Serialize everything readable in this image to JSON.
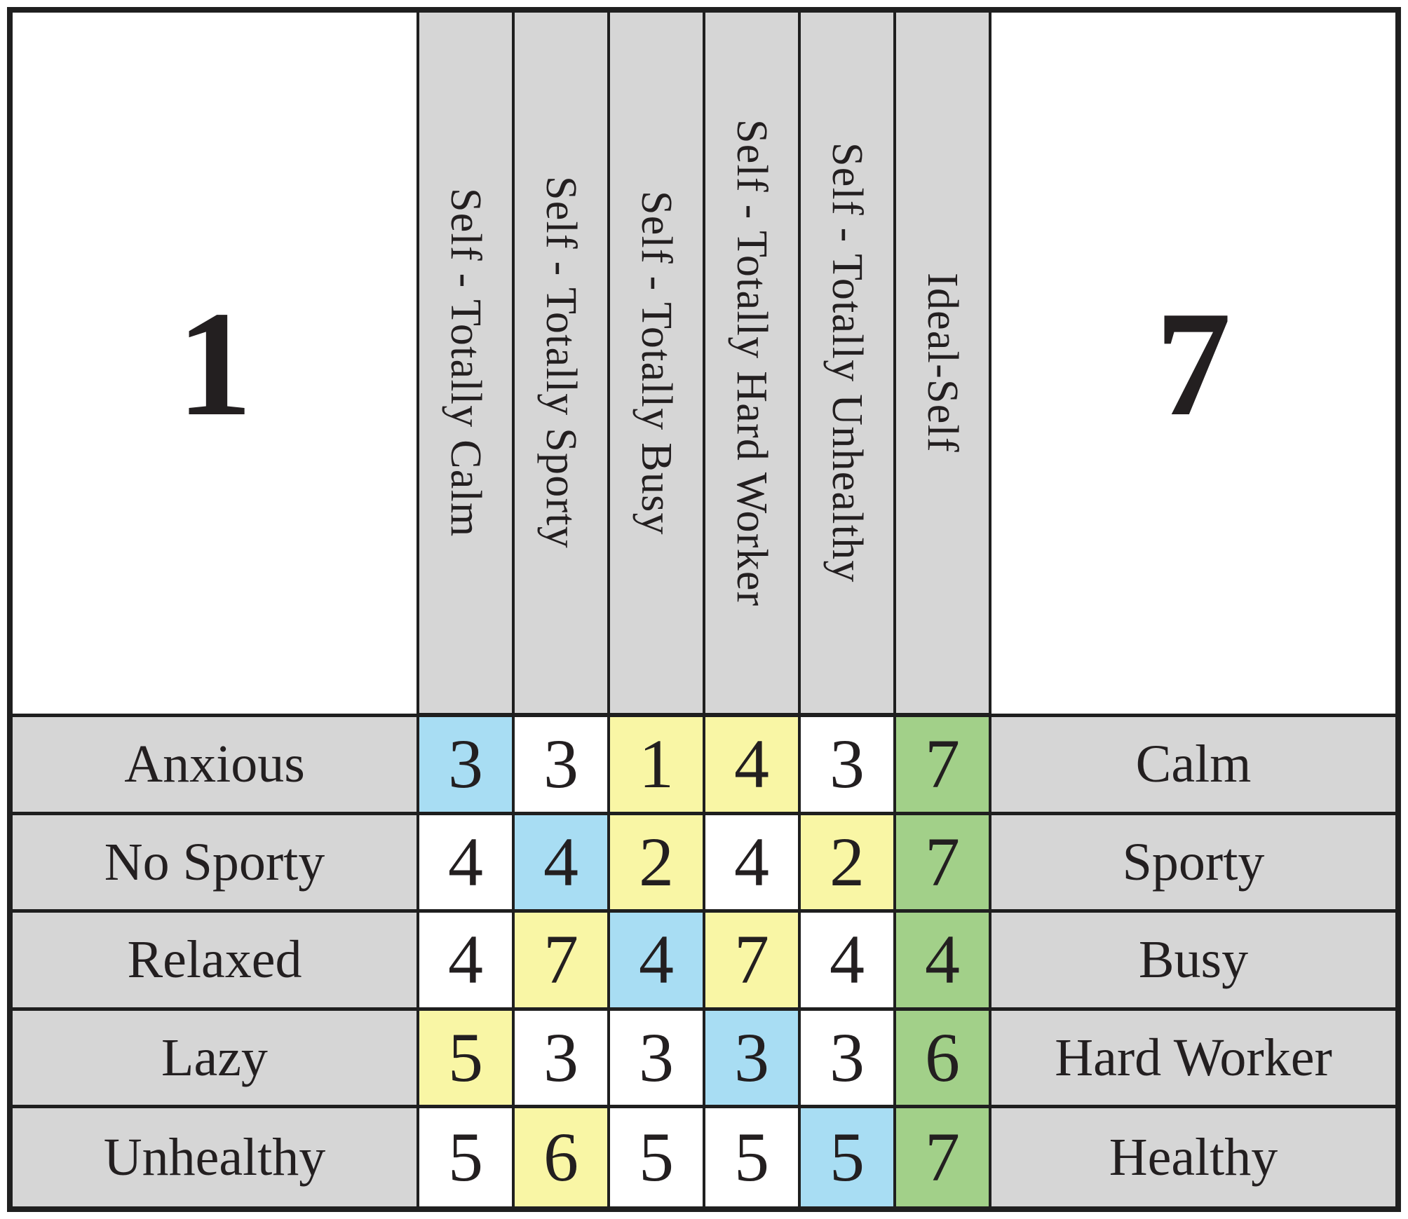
{
  "figure": {
    "left_scale": "1",
    "right_scale": "7",
    "column_headers": [
      "Self - Totally Calm",
      "Self - Totally Sporty",
      "Self - Totally Busy",
      "Self - Totally Hard Worker",
      "Self - Totally Unhealthy",
      "Ideal-Self"
    ],
    "rows": [
      {
        "left_pole": "Anxious",
        "right_pole": "Calm",
        "values": [
          "3",
          "3",
          "1",
          "4",
          "3",
          "7"
        ],
        "cell_colors": [
          "blue",
          "white",
          "yellow",
          "yellow",
          "white",
          "green"
        ]
      },
      {
        "left_pole": "No Sporty",
        "right_pole": "Sporty",
        "values": [
          "4",
          "4",
          "2",
          "4",
          "2",
          "7"
        ],
        "cell_colors": [
          "white",
          "blue",
          "yellow",
          "white",
          "yellow",
          "green"
        ]
      },
      {
        "left_pole": "Relaxed",
        "right_pole": "Busy",
        "values": [
          "4",
          "7",
          "4",
          "7",
          "4",
          "4"
        ],
        "cell_colors": [
          "white",
          "yellow",
          "blue",
          "yellow",
          "white",
          "green"
        ]
      },
      {
        "left_pole": "Lazy",
        "right_pole": "Hard Worker",
        "values": [
          "5",
          "3",
          "3",
          "3",
          "3",
          "6"
        ],
        "cell_colors": [
          "yellow",
          "white",
          "white",
          "blue",
          "white",
          "green"
        ]
      },
      {
        "left_pole": "Unhealthy",
        "right_pole": "Healthy",
        "values": [
          "5",
          "6",
          "5",
          "5",
          "5",
          "7"
        ],
        "cell_colors": [
          "white",
          "yellow",
          "white",
          "white",
          "blue",
          "green"
        ]
      }
    ],
    "colors": {
      "blue": "#a8ddf3",
      "yellow": "#f9f6a5",
      "green": "#a2d089",
      "white": "#ffffff",
      "header_gray": "#d6d6d6",
      "line": "#1f1f1f"
    }
  },
  "chart_data": {
    "type": "table",
    "scale_left_label": "1",
    "scale_right_label": "7",
    "columns": [
      "Self - Totally Calm",
      "Self - Totally Sporty",
      "Self - Totally Busy",
      "Self - Totally Hard Worker",
      "Self - Totally Unhealthy",
      "Ideal-Self"
    ],
    "rows": [
      {
        "construct_left": "Anxious",
        "construct_right": "Calm",
        "ratings": [
          3,
          3,
          1,
          4,
          3,
          7
        ]
      },
      {
        "construct_left": "No Sporty",
        "construct_right": "Sporty",
        "ratings": [
          4,
          4,
          2,
          4,
          2,
          7
        ]
      },
      {
        "construct_left": "Relaxed",
        "construct_right": "Busy",
        "ratings": [
          4,
          7,
          4,
          7,
          4,
          4
        ]
      },
      {
        "construct_left": "Lazy",
        "construct_right": "Hard Worker",
        "ratings": [
          5,
          3,
          3,
          3,
          3,
          6
        ]
      },
      {
        "construct_left": "Unhealthy",
        "construct_right": "Healthy",
        "ratings": [
          5,
          6,
          5,
          5,
          5,
          7
        ]
      }
    ],
    "cell_highlights": {
      "blue_cells": [
        [
          0,
          0
        ],
        [
          1,
          1
        ],
        [
          2,
          2
        ],
        [
          3,
          3
        ],
        [
          4,
          4
        ]
      ],
      "yellow_cells": [
        [
          0,
          2
        ],
        [
          0,
          3
        ],
        [
          1,
          2
        ],
        [
          1,
          4
        ],
        [
          2,
          1
        ],
        [
          2,
          3
        ],
        [
          3,
          0
        ],
        [
          4,
          1
        ]
      ],
      "green_cells": [
        [
          0,
          5
        ],
        [
          1,
          5
        ],
        [
          2,
          5
        ],
        [
          3,
          5
        ],
        [
          4,
          5
        ]
      ]
    },
    "layout": {
      "grid": true,
      "column_header_text_rotated_90deg": true
    }
  }
}
